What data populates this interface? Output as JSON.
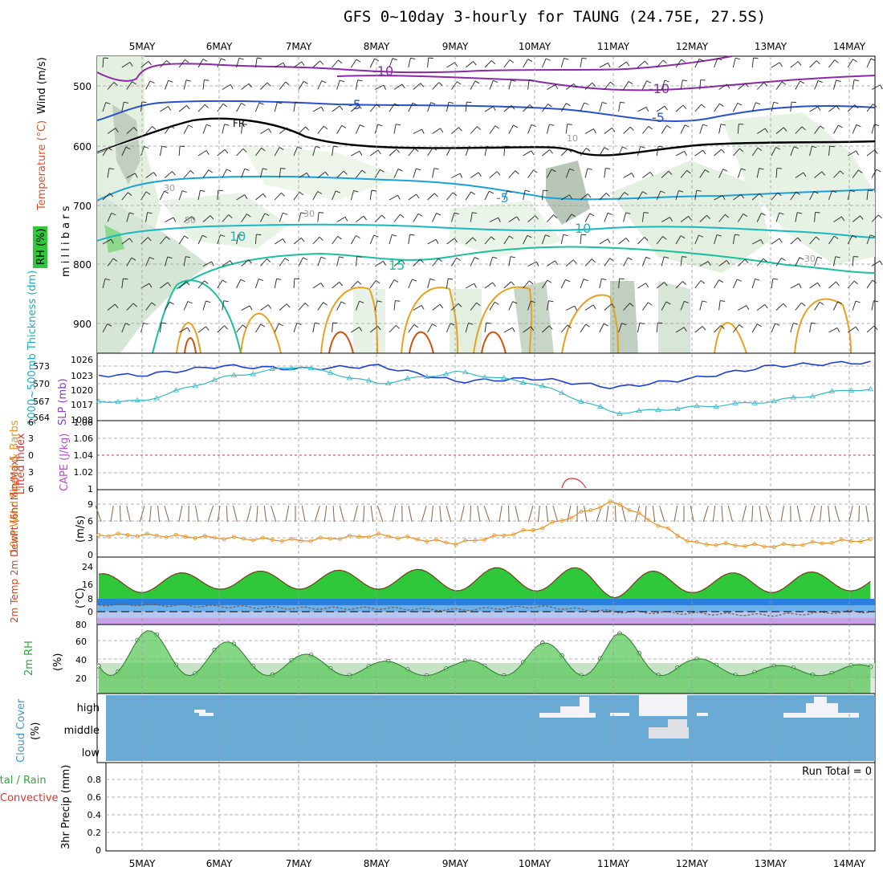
{
  "title": "GFS 0~10day 3-hourly for TAUNG (24.75E, 27.5S)",
  "dates": [
    "5MAY",
    "6MAY",
    "7MAY",
    "8MAY",
    "9MAY",
    "10MAY",
    "11MAY",
    "12MAY",
    "13MAY",
    "14MAY"
  ],
  "panels": {
    "upper_air": {
      "ylabel_wind": "Wind (m/s)",
      "ylabel_temp": "Temperature (°C)",
      "ylabel_rh": "RH (%)",
      "ylabel_mb": "m i l l i b a r s",
      "pressure_ticks": [
        500,
        600,
        700,
        800,
        900
      ],
      "contour_labels": [
        "-10",
        "-10",
        "-5",
        "-5",
        "FR",
        "-5",
        "10",
        "10",
        "15",
        "30",
        "50",
        "30",
        "10",
        "30"
      ]
    },
    "thickness_slp": {
      "ylabel_thick": "1000~500mb Thickness (dm)",
      "ylabel_slp": "SLP (mb)",
      "thick_ticks": [
        "573",
        "570",
        "567",
        "564"
      ],
      "slp_ticks": [
        "1026",
        "1023",
        "1020",
        "1017",
        "1008"
      ]
    },
    "cape_li": {
      "ylabel_li": "Lifted Index",
      "ylabel_cape": "CAPE (J/kg)",
      "li_ticks": [
        "6",
        "3",
        "0",
        "3",
        "6"
      ],
      "cape_ticks": [
        "1.06",
        "1.06",
        "1.04",
        "1.02",
        "1"
      ]
    },
    "wind10m": {
      "ylabel": "10m Wind Speed & Barbs",
      "yunit": "(m/s)",
      "ticks": [
        "9",
        "6",
        "3",
        "0"
      ]
    },
    "temp2m": {
      "ylabel": "2m Temp 2m DewPt (6hr Min/Max)",
      "yunit": "(°C)",
      "ticks": [
        "24",
        "16",
        "8",
        "0"
      ]
    },
    "rh2m": {
      "ylabel": "2m RH",
      "yunit": "(%)",
      "ticks": [
        "80",
        "60",
        "40",
        "20"
      ]
    },
    "cloud": {
      "ylabel": "Cloud Cover",
      "yunit": "(%)",
      "levels": [
        "high",
        "middle",
        "low"
      ]
    },
    "precip": {
      "ylabel": "3hr Precip (mm)",
      "legend_total": "Total / Rain",
      "legend_conv": "Convective",
      "run_total": "Run Total = 0",
      "ticks": [
        "0.8",
        "0.6",
        "0.4",
        "0.2",
        "0"
      ]
    }
  },
  "colors": {
    "slp": "#1f3fd0",
    "thickness": "#34b8c8",
    "wind10m": "#e89020",
    "rh2m_fill": "#2fc83a",
    "cloud_bg": "#6aabd6",
    "li_red": "#e03030",
    "cape_purple": "#b050c8"
  },
  "chart_data": [
    {
      "type": "line",
      "title": "1000~500mb Thickness / SLP",
      "x": [
        "5MAY",
        "6MAY",
        "7MAY",
        "8MAY",
        "9MAY",
        "10MAY",
        "11MAY",
        "12MAY",
        "13MAY",
        "14MAY"
      ],
      "series": [
        {
          "name": "SLP (mb)",
          "values": [
            1021,
            1024,
            1023,
            1024,
            1019,
            1020,
            1017,
            1020,
            1024,
            1025
          ]
        },
        {
          "name": "1000~500mb Thickness (dm)",
          "values": [
            567,
            571,
            573,
            570,
            572,
            570,
            565,
            566,
            567,
            569
          ]
        }
      ]
    },
    {
      "type": "line",
      "title": "10m Wind Speed",
      "yunit": "m/s",
      "x": [
        "5MAY",
        "6MAY",
        "7MAY",
        "8MAY",
        "9MAY",
        "10MAY",
        "11MAY",
        "12MAY",
        "13MAY",
        "14MAY"
      ],
      "series": [
        {
          "name": "10m Wind Speed",
          "values": [
            3.5,
            3,
            2.5,
            3.5,
            2,
            4.5,
            9.5,
            2,
            1.5,
            2.5
          ]
        }
      ]
    },
    {
      "type": "area",
      "title": "2m Temp",
      "yunit": "°C",
      "x": [
        "5MAY",
        "6MAY",
        "7MAY",
        "8MAY",
        "9MAY",
        "10MAY",
        "11MAY",
        "12MAY",
        "13MAY",
        "14MAY"
      ],
      "series": [
        {
          "name": "2m Temp max",
          "values": [
            22,
            23,
            24,
            24,
            25,
            26,
            25,
            22,
            23,
            23
          ]
        },
        {
          "name": "2m Temp min",
          "values": [
            11,
            13,
            13,
            13,
            12,
            12,
            8,
            11,
            11,
            12
          ]
        },
        {
          "name": "2m DewPt",
          "values": [
            4,
            3,
            2,
            2,
            1,
            3,
            0,
            -1,
            -2,
            0
          ]
        }
      ]
    },
    {
      "type": "area",
      "title": "2m RH",
      "yunit": "%",
      "x": [
        "5MAY",
        "6MAY",
        "7MAY",
        "8MAY",
        "9MAY",
        "10MAY",
        "11MAY",
        "12MAY",
        "13MAY",
        "14MAY"
      ],
      "series": [
        {
          "name": "2m RH",
          "values": [
            72,
            60,
            46,
            38,
            36,
            56,
            70,
            41,
            33,
            34
          ]
        }
      ]
    },
    {
      "type": "bar",
      "title": "3hr Precip (mm)",
      "ylim": [
        0,
        1
      ],
      "x": [
        "5MAY",
        "6MAY",
        "7MAY",
        "8MAY",
        "9MAY",
        "10MAY",
        "11MAY",
        "12MAY",
        "13MAY",
        "14MAY"
      ],
      "series": [
        {
          "name": "Total / Rain",
          "values": [
            0,
            0,
            0,
            0,
            0,
            0,
            0,
            0,
            0,
            0
          ]
        }
      ]
    }
  ]
}
